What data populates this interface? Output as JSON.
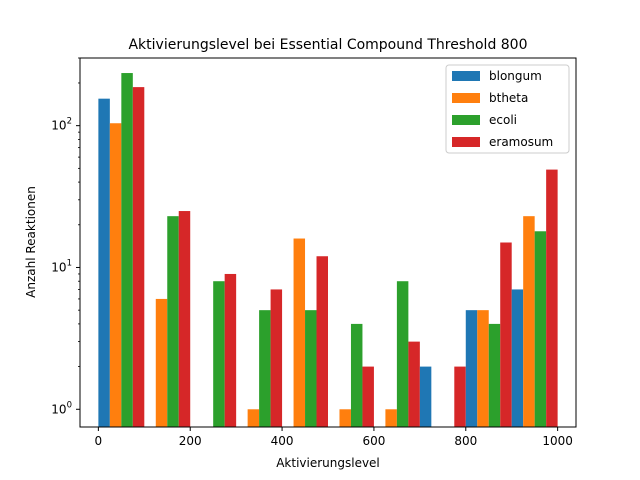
{
  "chart_data": {
    "type": "bar",
    "title": "Aktivierungslevel bei Essential Compound Threshold 800",
    "xlabel": "Aktivierungslevel",
    "ylabel": "Anzahl Reaktionen",
    "yscale": "log",
    "ylim": [
      0.75,
      300
    ],
    "xlim": [
      -40,
      1040
    ],
    "xticks": [
      0,
      200,
      400,
      600,
      800,
      1000
    ],
    "xtick_labels": [
      "0",
      "200",
      "400",
      "600",
      "800",
      "1000"
    ],
    "yticks": [
      1,
      10,
      100
    ],
    "legend_position": "top-right",
    "bin_edges": [
      0,
      100,
      200,
      300,
      400,
      500,
      600,
      700,
      800,
      900,
      1000
    ],
    "series": [
      {
        "name": "blongum",
        "color": "#1f77b4",
        "values": [
          155,
          0,
          0,
          0,
          0,
          0,
          0,
          2,
          5,
          7
        ]
      },
      {
        "name": "btheta",
        "color": "#ff7f0e",
        "values": [
          104,
          6,
          0,
          1,
          16,
          1,
          1,
          0,
          5,
          23
        ]
      },
      {
        "name": "ecoli",
        "color": "#2ca02c",
        "values": [
          235,
          23,
          8,
          5,
          5,
          4,
          8,
          0,
          4,
          18
        ]
      },
      {
        "name": "eramosum",
        "color": "#d62728",
        "values": [
          187,
          25,
          9,
          7,
          12,
          2,
          3,
          2,
          15,
          49
        ]
      }
    ]
  }
}
